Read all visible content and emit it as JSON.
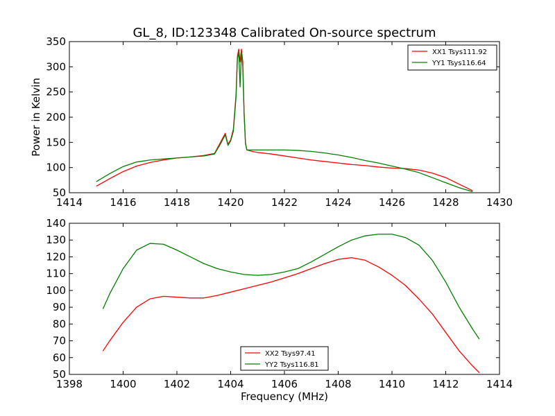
{
  "figure": {
    "title": "GL_8, ID:123348 Calibrated On-source spectrum"
  },
  "colors": {
    "red": "#ff0000",
    "green": "#007f00",
    "axis": "#000000",
    "background": "#ffffff"
  },
  "chart_data": [
    {
      "type": "line",
      "title": "GL_8, ID:123348 Calibrated On-source spectrum",
      "xlabel": "",
      "ylabel": "Power in Kelvin",
      "xlim": [
        1414,
        1430
      ],
      "ylim": [
        50,
        350
      ],
      "xticks": [
        1414,
        1416,
        1418,
        1420,
        1422,
        1424,
        1426,
        1428,
        1430
      ],
      "yticks": [
        50,
        100,
        150,
        200,
        250,
        300,
        350
      ],
      "grid": false,
      "legend": "top-right",
      "series": [
        {
          "name": "XX1 Tsys111.92",
          "color": "#ff0000",
          "x": [
            1415.0,
            1415.5,
            1416.0,
            1416.5,
            1417.0,
            1417.5,
            1418.0,
            1418.5,
            1419.0,
            1419.4,
            1419.6,
            1419.8,
            1419.9,
            1420.0,
            1420.1,
            1420.2,
            1420.25,
            1420.3,
            1420.35,
            1420.4,
            1420.45,
            1420.5,
            1420.55,
            1420.6,
            1420.8,
            1421.0,
            1421.5,
            1422.0,
            1422.5,
            1423.0,
            1423.5,
            1424.0,
            1424.5,
            1425.0,
            1425.5,
            1426.0,
            1426.5,
            1427.0,
            1427.5,
            1428.0,
            1428.5,
            1429.0
          ],
          "values": [
            63,
            78,
            92,
            103,
            110,
            115,
            119,
            121,
            124,
            128,
            148,
            168,
            146,
            155,
            176,
            245,
            320,
            335,
            310,
            335,
            310,
            210,
            150,
            135,
            132,
            130,
            127,
            123,
            119,
            115,
            112,
            109,
            106,
            104,
            101,
            99,
            98,
            95,
            89,
            80,
            67,
            54
          ]
        },
        {
          "name": "YY1 Tsys116.64",
          "color": "#007f00",
          "x": [
            1415.0,
            1415.5,
            1416.0,
            1416.5,
            1417.0,
            1417.5,
            1418.0,
            1418.5,
            1419.0,
            1419.4,
            1419.6,
            1419.8,
            1419.9,
            1420.0,
            1420.1,
            1420.2,
            1420.25,
            1420.3,
            1420.35,
            1420.4,
            1420.45,
            1420.5,
            1420.55,
            1420.6,
            1420.8,
            1421.0,
            1421.5,
            1422.0,
            1422.5,
            1423.0,
            1423.5,
            1424.0,
            1424.5,
            1425.0,
            1425.5,
            1426.0,
            1426.5,
            1427.0,
            1427.5,
            1428.0,
            1428.5,
            1429.0
          ],
          "values": [
            72,
            88,
            102,
            111,
            115,
            117,
            119,
            121,
            123,
            127,
            145,
            165,
            144,
            153,
            172,
            240,
            315,
            330,
            260,
            328,
            300,
            205,
            148,
            135,
            135,
            135,
            135,
            135,
            134,
            132,
            129,
            125,
            120,
            114,
            109,
            103,
            97,
            90,
            80,
            70,
            60,
            52
          ]
        }
      ]
    },
    {
      "type": "line",
      "title": "",
      "xlabel": "Frequency (MHz)",
      "ylabel": "",
      "xlim": [
        1398,
        1414
      ],
      "ylim": [
        50,
        140
      ],
      "xticks": [
        1398,
        1400,
        1402,
        1404,
        1406,
        1408,
        1410,
        1412,
        1414
      ],
      "yticks": [
        50,
        60,
        70,
        80,
        90,
        100,
        110,
        120,
        130,
        140
      ],
      "grid": false,
      "legend": "bottom-center",
      "series": [
        {
          "name": "XX2 Tsys97.41",
          "color": "#ff0000",
          "x": [
            1399.25,
            1399.5,
            1400.0,
            1400.5,
            1401.0,
            1401.5,
            1402.0,
            1402.5,
            1403.0,
            1403.5,
            1404.0,
            1404.5,
            1405.0,
            1405.5,
            1406.0,
            1406.5,
            1407.0,
            1407.5,
            1408.0,
            1408.5,
            1409.0,
            1409.5,
            1410.0,
            1410.5,
            1411.0,
            1411.5,
            1412.0,
            1412.5,
            1413.0,
            1413.25
          ],
          "values": [
            64,
            70,
            81,
            90,
            95,
            96.5,
            96,
            95.5,
            95.5,
            97,
            99,
            101,
            103,
            105,
            107.5,
            110,
            113,
            116,
            118.5,
            119.5,
            118,
            114,
            109,
            103,
            95,
            86,
            75,
            64,
            55,
            51
          ]
        },
        {
          "name": "YY2 Tsys116.81",
          "color": "#007f00",
          "x": [
            1399.25,
            1399.5,
            1400.0,
            1400.5,
            1401.0,
            1401.5,
            1402.0,
            1402.5,
            1403.0,
            1403.5,
            1404.0,
            1404.5,
            1405.0,
            1405.5,
            1406.0,
            1406.5,
            1407.0,
            1407.5,
            1408.0,
            1408.5,
            1409.0,
            1409.5,
            1410.0,
            1410.5,
            1411.0,
            1411.5,
            1412.0,
            1412.5,
            1413.0,
            1413.25
          ],
          "values": [
            89,
            98,
            113,
            124,
            128,
            127.5,
            124,
            120,
            116,
            113,
            111,
            109.5,
            109,
            109.5,
            111,
            113,
            117,
            121.5,
            126,
            130,
            132.5,
            133.5,
            133.5,
            131.5,
            127,
            118,
            105,
            90,
            77,
            71
          ]
        }
      ]
    }
  ]
}
